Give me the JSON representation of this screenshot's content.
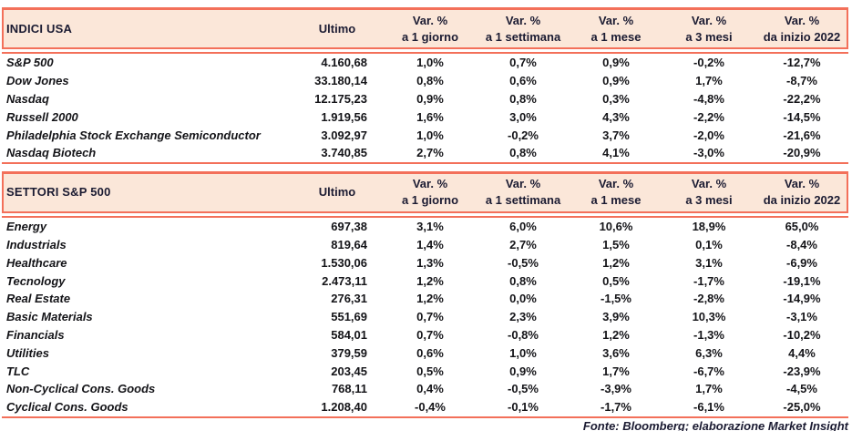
{
  "colors": {
    "accent": "#F3705A",
    "band_fill": "#FBE7D9",
    "header_text": "#1B1B32",
    "data_text": "#141418"
  },
  "column_headers": {
    "ultimo": "Ultimo",
    "var_columns": [
      {
        "line1": "Var. %",
        "line2": "a 1 giorno"
      },
      {
        "line1": "Var. %",
        "line2": "a 1 settimana"
      },
      {
        "line1": "Var. %",
        "line2": "a 1 mese"
      },
      {
        "line1": "Var. %",
        "line2": "a 3 mesi"
      },
      {
        "line1": "Var. %",
        "line2": "da inizio 2022"
      }
    ]
  },
  "chart_data": [
    {
      "type": "table",
      "title": "INDICI USA",
      "columns": [
        "Ultimo",
        "Var. % a 1 giorno",
        "Var. % a 1 settimana",
        "Var. % a 1 mese",
        "Var. % a 3 mesi",
        "Var. % da inizio 2022"
      ],
      "rows": [
        {
          "label": "S&P 500",
          "values": [
            "4.160,68",
            "1,0%",
            "0,7%",
            "0,9%",
            "-0,2%",
            "-12,7%"
          ]
        },
        {
          "label": "Dow Jones",
          "values": [
            "33.180,14",
            "0,8%",
            "0,6%",
            "0,9%",
            "1,7%",
            "-8,7%"
          ]
        },
        {
          "label": "Nasdaq",
          "values": [
            "12.175,23",
            "0,9%",
            "0,8%",
            "0,3%",
            "-4,8%",
            "-22,2%"
          ]
        },
        {
          "label": "Russell 2000",
          "values": [
            "1.919,56",
            "1,6%",
            "3,0%",
            "4,3%",
            "-2,2%",
            "-14,5%"
          ]
        },
        {
          "label": "Philadelphia Stock Exchange Semiconductor",
          "values": [
            "3.092,97",
            "1,0%",
            "-0,2%",
            "3,7%",
            "-2,0%",
            "-21,6%"
          ]
        },
        {
          "label": "Nasdaq Biotech",
          "values": [
            "3.740,85",
            "2,7%",
            "0,8%",
            "4,1%",
            "-3,0%",
            "-20,9%"
          ]
        }
      ]
    },
    {
      "type": "table",
      "title": "SETTORI S&P 500",
      "columns": [
        "Ultimo",
        "Var. % a 1 giorno",
        "Var. % a 1 settimana",
        "Var. % a 1 mese",
        "Var. % a 3 mesi",
        "Var. % da inizio 2022"
      ],
      "rows": [
        {
          "label": "Energy",
          "values": [
            "697,38",
            "3,1%",
            "6,0%",
            "10,6%",
            "18,9%",
            "65,0%"
          ]
        },
        {
          "label": "Industrials",
          "values": [
            "819,64",
            "1,4%",
            "2,7%",
            "1,5%",
            "0,1%",
            "-8,4%"
          ]
        },
        {
          "label": "Healthcare",
          "values": [
            "1.530,06",
            "1,3%",
            "-0,5%",
            "1,2%",
            "3,1%",
            "-6,9%"
          ]
        },
        {
          "label": "Tecnology",
          "values": [
            "2.473,11",
            "1,2%",
            "0,8%",
            "0,5%",
            "-1,7%",
            "-19,1%"
          ]
        },
        {
          "label": "Real Estate",
          "values": [
            "276,31",
            "1,2%",
            "0,0%",
            "-1,5%",
            "-2,8%",
            "-14,9%"
          ]
        },
        {
          "label": "Basic Materials",
          "values": [
            "551,69",
            "0,7%",
            "2,3%",
            "3,9%",
            "10,3%",
            "-3,1%"
          ]
        },
        {
          "label": "Financials",
          "values": [
            "584,01",
            "0,7%",
            "-0,8%",
            "1,2%",
            "-1,3%",
            "-10,2%"
          ]
        },
        {
          "label": "Utilities",
          "values": [
            "379,59",
            "0,6%",
            "1,0%",
            "3,6%",
            "6,3%",
            "4,4%"
          ]
        },
        {
          "label": "TLC",
          "values": [
            "203,45",
            "0,5%",
            "0,9%",
            "1,7%",
            "-6,7%",
            "-23,9%"
          ]
        },
        {
          "label": "Non-Cyclical Cons. Goods",
          "values": [
            "768,11",
            "0,4%",
            "-0,5%",
            "-3,9%",
            "1,7%",
            "-4,5%"
          ]
        },
        {
          "label": "Cyclical Cons. Goods",
          "values": [
            "1.208,40",
            "-0,4%",
            "-0,1%",
            "-1,7%",
            "-6,1%",
            "-25,0%"
          ]
        }
      ]
    }
  ],
  "footer": {
    "source_text": "Fonte: Bloomberg; elaborazione Market Insight"
  }
}
